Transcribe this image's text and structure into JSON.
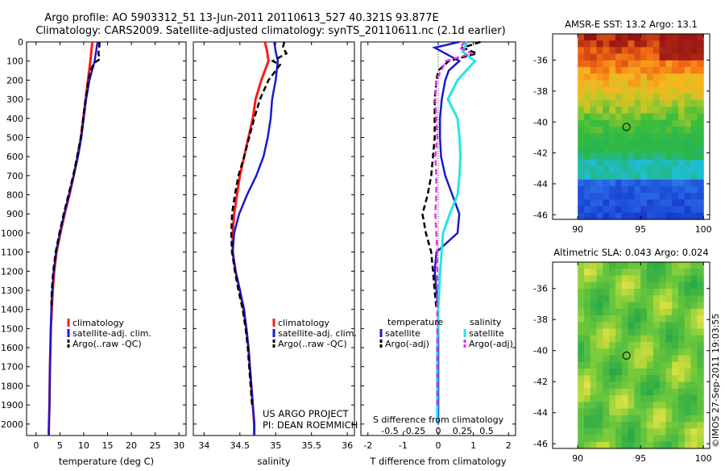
{
  "title": {
    "line1": "Argo profile: AO 5903312_51 13-Jun-2011 20110613_527 40.321S 93.877E",
    "line2": "Climatology: CARS2009. Satellite-adjusted climatology: synTS_20110611.nc (2.1d earlier)"
  },
  "footer_credit": "©IMOS 27-Sep-2011 19:03:55",
  "project": {
    "line1": "US ARGO PROJECT",
    "line2": "PI: DEAN ROEMMICH"
  },
  "colors": {
    "climatology": "#ff1a1a",
    "satellite": "#1a1acc",
    "argo": "#000000",
    "sat_salinity": "#22e6e6",
    "argo_salinity": "#e633e6"
  },
  "depth_ticks": [
    "0",
    "100",
    "200",
    "300",
    "400",
    "500",
    "600",
    "700",
    "800",
    "900",
    "1000",
    "1100",
    "1200",
    "1300",
    "1400",
    "1500",
    "1600",
    "1700",
    "1800",
    "1900",
    "2000"
  ],
  "chart_data": [
    {
      "type": "line",
      "xlabel": "temperature (deg C)",
      "xlim": [
        -2,
        31.5
      ],
      "ylim": [
        0,
        2060
      ],
      "xticks": [
        "0",
        "5",
        "10",
        "15",
        "20",
        "25",
        "30"
      ],
      "legend": [
        "climatology",
        "satellite-adj. clim.",
        "Argo(..raw -QC)"
      ],
      "series": [
        {
          "name": "climatology",
          "depth": [
            0,
            50,
            100,
            200,
            300,
            400,
            500,
            600,
            700,
            800,
            900,
            1000,
            1100,
            1200,
            1300,
            1400,
            1500,
            1600,
            1700,
            1800,
            1900,
            2000,
            2060
          ],
          "values": [
            11.8,
            11.6,
            11.4,
            10.9,
            10.4,
            9.9,
            9.4,
            8.7,
            7.9,
            7.0,
            6.0,
            5.1,
            4.3,
            3.8,
            3.5,
            3.3,
            3.1,
            3.0,
            2.9,
            2.85,
            2.8,
            2.7,
            2.65
          ]
        },
        {
          "name": "satellite-adj. clim.",
          "depth": [
            0,
            50,
            100,
            200,
            300,
            400,
            500,
            600,
            700,
            800,
            900,
            1000,
            1100,
            1200,
            1300,
            1400,
            1500,
            1600,
            1700,
            1800,
            1900,
            2000,
            2060
          ],
          "values": [
            12.9,
            12.6,
            12.3,
            11.2,
            10.5,
            10.0,
            9.5,
            8.8,
            7.9,
            6.9,
            5.9,
            5.0,
            4.2,
            3.7,
            3.4,
            3.2,
            3.1,
            3.0,
            2.9,
            2.85,
            2.8,
            2.7,
            2.65
          ]
        },
        {
          "name": "Argo(..raw -QC)",
          "depth": [
            0,
            20,
            60,
            90,
            110,
            150,
            200,
            300,
            400,
            500,
            600,
            700,
            800,
            900,
            1000,
            1100,
            1200,
            1300,
            1400
          ],
          "values": [
            13.3,
            13.3,
            13.1,
            13.4,
            12.2,
            11.4,
            11.0,
            10.4,
            9.9,
            9.4,
            8.6,
            7.8,
            6.8,
            5.8,
            4.9,
            4.1,
            3.6,
            3.3,
            3.2
          ]
        }
      ]
    },
    {
      "type": "line",
      "xlabel": "salinity",
      "xlim": [
        33.85,
        36.1
      ],
      "ylim": [
        0,
        2060
      ],
      "xticks": [
        "34",
        "34.5",
        "35",
        "35.5",
        "36"
      ],
      "legend": [
        "climatology",
        "satellite-adj. clim.",
        "Argo(..raw -QC)"
      ],
      "series": [
        {
          "name": "climatology",
          "depth": [
            0,
            50,
            100,
            200,
            300,
            400,
            500,
            600,
            700,
            800,
            900,
            1000,
            1100,
            1200,
            1300,
            1400,
            1500,
            1600,
            1700,
            1800,
            1900,
            2000,
            2060
          ],
          "values": [
            34.85,
            34.88,
            34.9,
            34.8,
            34.72,
            34.68,
            34.62,
            34.56,
            34.5,
            34.46,
            34.42,
            34.4,
            34.4,
            34.44,
            34.5,
            34.55,
            34.59,
            34.62,
            34.64,
            34.66,
            34.68,
            34.7,
            34.7
          ]
        },
        {
          "name": "satellite-adj. clim.",
          "depth": [
            0,
            50,
            100,
            200,
            300,
            400,
            500,
            600,
            700,
            800,
            900,
            1000,
            1100,
            1200,
            1300,
            1400,
            1500,
            1600,
            1700,
            1800,
            1900,
            2000,
            2060
          ],
          "values": [
            34.98,
            35.0,
            35.03,
            35.0,
            34.95,
            34.93,
            34.89,
            34.83,
            34.73,
            34.6,
            34.49,
            34.42,
            34.4,
            34.44,
            34.5,
            34.56,
            34.59,
            34.62,
            34.64,
            34.66,
            34.68,
            34.7,
            34.7
          ]
        },
        {
          "name": "Argo(..raw -QC)",
          "depth": [
            0,
            30,
            60,
            100,
            120,
            200,
            300,
            400,
            500,
            600,
            700,
            800,
            900,
            1000,
            1100,
            1200,
            1300,
            1400,
            1500,
            1600,
            1700,
            1800,
            1900
          ],
          "values": [
            35.12,
            35.1,
            35.15,
            34.96,
            35.06,
            34.9,
            34.78,
            34.7,
            34.63,
            34.56,
            34.48,
            34.43,
            34.39,
            34.38,
            34.39,
            34.43,
            34.48,
            34.54,
            34.58,
            34.61,
            34.63,
            34.65,
            34.67
          ]
        }
      ]
    },
    {
      "type": "line",
      "xlabel": "T difference from climatology",
      "xlabel2": "S difference from climatology",
      "xlim": [
        -2.2,
        2.2
      ],
      "x2lim": [
        -0.8,
        0.8
      ],
      "ylim": [
        0,
        2060
      ],
      "xticks": [
        "-2",
        "-1",
        "0",
        "1",
        "2"
      ],
      "x2ticks": [
        "-0.5",
        "-0.25",
        "0",
        "0.25",
        "0.5"
      ],
      "legend_titles": [
        "temperature",
        "salinity"
      ],
      "legend": [
        "satellite",
        "Argo(-adj)",
        "satellite",
        "Argo(-adj)"
      ],
      "series": [
        {
          "name": "temperature satellite",
          "axis": "T",
          "depth": [
            0,
            30,
            60,
            100,
            150,
            200,
            300,
            400,
            500,
            600,
            700,
            800,
            900,
            1000,
            1100,
            1200,
            1300,
            1400,
            1500,
            1700,
            2000
          ],
          "values": [
            0.6,
            -0.1,
            0.2,
            0.6,
            0.3,
            0.2,
            0.1,
            0.05,
            0.05,
            0.08,
            0.2,
            0.4,
            0.6,
            0.55,
            -0.05,
            -0.1,
            -0.05,
            0.0,
            0.0,
            0.0,
            0.0
          ]
        },
        {
          "name": "temperature Argo(-adj)",
          "axis": "T",
          "depth": [
            0,
            30,
            60,
            100,
            150,
            200,
            300,
            400,
            500,
            600,
            700,
            800,
            900,
            1000,
            1100,
            1200,
            1300,
            1400
          ],
          "values": [
            1.2,
            0.7,
            1.1,
            0.3,
            0.0,
            -0.05,
            -0.1,
            -0.1,
            -0.1,
            -0.15,
            -0.2,
            -0.3,
            -0.45,
            -0.35,
            -0.2,
            -0.15,
            -0.1,
            -0.05
          ]
        },
        {
          "name": "salinity satellite",
          "axis": "S",
          "depth": [
            0,
            50,
            100,
            200,
            300,
            400,
            500,
            600,
            700,
            800,
            900,
            1000,
            1200,
            1400,
            1600,
            1800,
            2000
          ],
          "values": [
            0.3,
            0.25,
            0.38,
            0.2,
            0.1,
            0.2,
            0.22,
            0.23,
            0.22,
            0.2,
            0.12,
            0.05,
            0.02,
            0.0,
            -0.01,
            -0.01,
            -0.01
          ]
        },
        {
          "name": "salinity Argo(-adj)",
          "axis": "S",
          "depth": [
            0,
            30,
            60,
            100,
            200,
            300,
            400,
            500,
            600,
            700,
            800,
            900,
            1000,
            1100,
            1200,
            1400,
            1600,
            1800,
            1900
          ],
          "values": [
            0.28,
            0.22,
            0.35,
            0.08,
            -0.02,
            -0.03,
            -0.02,
            -0.01,
            -0.03,
            -0.02,
            -0.02,
            -0.03,
            -0.02,
            -0.01,
            -0.01,
            -0.01,
            -0.01,
            -0.01,
            -0.01
          ]
        }
      ]
    },
    {
      "type": "heatmap",
      "title": "AMSR-E SST: 13.2 Argo: 13.1",
      "xlim": [
        88,
        100.5
      ],
      "ylim": [
        -46.3,
        -34.3
      ],
      "xticks": [
        "90",
        "95",
        "100"
      ],
      "yticks": [
        "-36",
        "-38",
        "-40",
        "-42",
        "-44",
        "-46"
      ],
      "data_extent": {
        "x": [
          90,
          100
        ],
        "y": [
          -46.3,
          -34.3
        ]
      },
      "argo_marker": {
        "lon": 93.877,
        "lat": -40.321
      }
    },
    {
      "type": "heatmap",
      "title": "Altimetric SLA: 0.043 Argo: 0.024",
      "xlim": [
        88,
        100.5
      ],
      "ylim": [
        -46.3,
        -34.3
      ],
      "xticks": [
        "90",
        "95",
        "100"
      ],
      "yticks": [
        "-36",
        "-38",
        "-40",
        "-42",
        "-44",
        "-46"
      ],
      "data_extent": {
        "x": [
          90,
          100
        ],
        "y": [
          -46.3,
          -34.3
        ]
      },
      "argo_marker": {
        "lon": 93.877,
        "lat": -40.321
      }
    }
  ]
}
